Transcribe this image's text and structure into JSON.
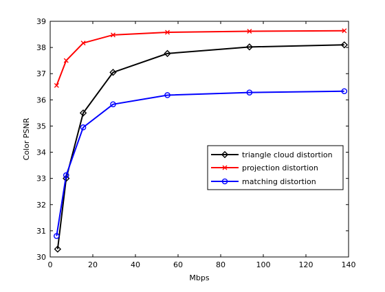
{
  "chart_data": {
    "type": "line",
    "title": "",
    "xlabel": "Mbps",
    "ylabel": "Color PSNR",
    "xlim": [
      0,
      140
    ],
    "ylim": [
      30,
      39
    ],
    "xticks": [
      0,
      20,
      40,
      60,
      80,
      100,
      120,
      140
    ],
    "yticks": [
      30,
      31,
      32,
      33,
      34,
      35,
      36,
      37,
      38,
      39
    ],
    "grid": false,
    "legend_position": "right",
    "series": [
      {
        "name": "triangle cloud distortion",
        "color": "#000000",
        "marker": "diamond",
        "x": [
          3.5,
          7.5,
          15.5,
          29.5,
          55,
          93.5,
          138
        ],
        "y": [
          30.3,
          33.0,
          35.5,
          37.05,
          37.77,
          38.02,
          38.1
        ]
      },
      {
        "name": "projection distortion",
        "color": "#ff0000",
        "marker": "x",
        "x": [
          3,
          7.5,
          15.5,
          29.5,
          55,
          93.5,
          138
        ],
        "y": [
          36.55,
          37.5,
          38.17,
          38.48,
          38.58,
          38.62,
          38.64
        ]
      },
      {
        "name": "matching distortion",
        "color": "#0000ff",
        "marker": "circle",
        "x": [
          3,
          7.5,
          15.5,
          29.5,
          55,
          93.5,
          138
        ],
        "y": [
          30.8,
          33.12,
          34.95,
          35.83,
          36.18,
          36.28,
          36.33
        ]
      }
    ]
  }
}
